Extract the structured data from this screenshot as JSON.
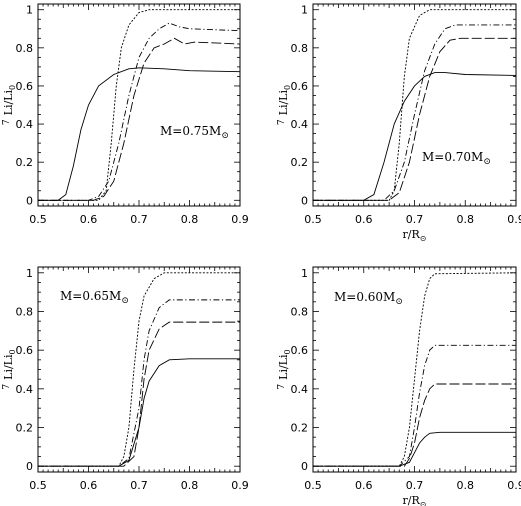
{
  "chart_data": [
    {
      "type": "line",
      "annotation": "M=0.75M",
      "annotation_sub": "⊙",
      "xlabel": "",
      "ylabel": "Li/Li",
      "ylabel_pre": "7",
      "ylabel_sub": "0",
      "xlim": [
        0.5,
        0.9
      ],
      "ylim": [
        -0.03,
        1.03
      ],
      "x_ticks": [
        "0.5",
        "0.6",
        "0.7",
        "0.8",
        "0.9"
      ],
      "y_ticks": [
        "0",
        "0.2",
        "0.4",
        "0.6",
        "0.8",
        "1"
      ],
      "series": [
        {
          "style": "solid",
          "points": [
            [
              0.5,
              0
            ],
            [
              0.54,
              0
            ],
            [
              0.555,
              0.03
            ],
            [
              0.57,
              0.18
            ],
            [
              0.585,
              0.37
            ],
            [
              0.6,
              0.5
            ],
            [
              0.62,
              0.6
            ],
            [
              0.65,
              0.66
            ],
            [
              0.68,
              0.69
            ],
            [
              0.7,
              0.695
            ],
            [
              0.75,
              0.69
            ],
            [
              0.8,
              0.68
            ],
            [
              0.9,
              0.675
            ]
          ]
        },
        {
          "style": "dotted",
          "points": [
            [
              0.5,
              0
            ],
            [
              0.62,
              0
            ],
            [
              0.635,
              0.05
            ],
            [
              0.645,
              0.3
            ],
            [
              0.655,
              0.6
            ],
            [
              0.665,
              0.8
            ],
            [
              0.68,
              0.92
            ],
            [
              0.7,
              0.985
            ],
            [
              0.72,
              1.0
            ],
            [
              0.9,
              1.0
            ]
          ]
        },
        {
          "style": "dashdot",
          "points": [
            [
              0.5,
              0
            ],
            [
              0.6,
              0
            ],
            [
              0.62,
              0.02
            ],
            [
              0.64,
              0.1
            ],
            [
              0.66,
              0.3
            ],
            [
              0.68,
              0.55
            ],
            [
              0.7,
              0.75
            ],
            [
              0.72,
              0.85
            ],
            [
              0.74,
              0.9
            ],
            [
              0.76,
              0.93
            ],
            [
              0.78,
              0.91
            ],
            [
              0.8,
              0.9
            ],
            [
              0.9,
              0.89
            ]
          ]
        },
        {
          "style": "dashlong",
          "points": [
            [
              0.5,
              0
            ],
            [
              0.61,
              0
            ],
            [
              0.63,
              0.02
            ],
            [
              0.65,
              0.1
            ],
            [
              0.67,
              0.3
            ],
            [
              0.69,
              0.55
            ],
            [
              0.71,
              0.72
            ],
            [
              0.73,
              0.8
            ],
            [
              0.75,
              0.82
            ],
            [
              0.77,
              0.85
            ],
            [
              0.79,
              0.82
            ],
            [
              0.81,
              0.83
            ],
            [
              0.9,
              0.82
            ]
          ]
        }
      ]
    },
    {
      "type": "line",
      "annotation": "M=0.70M",
      "annotation_sub": "⊙",
      "xlabel": "r/R",
      "xlabel_sub": "⊙",
      "ylabel": "Li/Li",
      "ylabel_pre": "7",
      "ylabel_sub": "0",
      "xlim": [
        0.5,
        0.9
      ],
      "ylim": [
        -0.03,
        1.03
      ],
      "x_ticks": [
        "0.5",
        "0.6",
        "0.7",
        "0.8",
        "0.9"
      ],
      "y_ticks": [
        "0",
        "0.2",
        "0.4",
        "0.6",
        "0.8",
        "1"
      ],
      "series": [
        {
          "style": "solid",
          "points": [
            [
              0.5,
              0
            ],
            [
              0.6,
              0
            ],
            [
              0.62,
              0.03
            ],
            [
              0.64,
              0.2
            ],
            [
              0.66,
              0.4
            ],
            [
              0.68,
              0.52
            ],
            [
              0.7,
              0.6
            ],
            [
              0.72,
              0.65
            ],
            [
              0.74,
              0.67
            ],
            [
              0.76,
              0.67
            ],
            [
              0.8,
              0.66
            ],
            [
              0.9,
              0.655
            ]
          ]
        },
        {
          "style": "dotted",
          "points": [
            [
              0.5,
              0
            ],
            [
              0.65,
              0
            ],
            [
              0.66,
              0.05
            ],
            [
              0.67,
              0.3
            ],
            [
              0.68,
              0.65
            ],
            [
              0.69,
              0.85
            ],
            [
              0.71,
              0.97
            ],
            [
              0.73,
              1.0
            ],
            [
              0.9,
              1.0
            ]
          ]
        },
        {
          "style": "dashdot",
          "points": [
            [
              0.5,
              0
            ],
            [
              0.64,
              0
            ],
            [
              0.66,
              0.05
            ],
            [
              0.68,
              0.2
            ],
            [
              0.7,
              0.45
            ],
            [
              0.72,
              0.68
            ],
            [
              0.74,
              0.82
            ],
            [
              0.76,
              0.9
            ],
            [
              0.78,
              0.92
            ],
            [
              0.9,
              0.92
            ]
          ]
        },
        {
          "style": "dashlong",
          "points": [
            [
              0.5,
              0
            ],
            [
              0.65,
              0
            ],
            [
              0.67,
              0.04
            ],
            [
              0.69,
              0.2
            ],
            [
              0.71,
              0.45
            ],
            [
              0.73,
              0.65
            ],
            [
              0.75,
              0.78
            ],
            [
              0.77,
              0.84
            ],
            [
              0.79,
              0.85
            ],
            [
              0.9,
              0.85
            ]
          ]
        }
      ]
    },
    {
      "type": "line",
      "annotation": "M=0.65M",
      "annotation_sub": "⊙",
      "xlabel": "",
      "ylabel": "Li/Li",
      "ylabel_pre": "7",
      "ylabel_sub": "0",
      "xlim": [
        0.5,
        0.9
      ],
      "ylim": [
        -0.03,
        1.03
      ],
      "x_ticks": [
        "0.5",
        "0.6",
        "0.7",
        "0.8",
        "0.9"
      ],
      "y_ticks": [
        "0",
        "0.2",
        "0.4",
        "0.6",
        "0.8",
        "1"
      ],
      "series": [
        {
          "style": "solid",
          "points": [
            [
              0.5,
              0
            ],
            [
              0.66,
              0
            ],
            [
              0.68,
              0.03
            ],
            [
              0.7,
              0.2
            ],
            [
              0.71,
              0.35
            ],
            [
              0.72,
              0.44
            ],
            [
              0.74,
              0.52
            ],
            [
              0.76,
              0.55
            ],
            [
              0.8,
              0.555
            ],
            [
              0.9,
              0.555
            ]
          ]
        },
        {
          "style": "dotted",
          "points": [
            [
              0.5,
              0
            ],
            [
              0.66,
              0
            ],
            [
              0.67,
              0.05
            ],
            [
              0.68,
              0.2
            ],
            [
              0.69,
              0.5
            ],
            [
              0.7,
              0.75
            ],
            [
              0.71,
              0.88
            ],
            [
              0.73,
              0.97
            ],
            [
              0.75,
              1.0
            ],
            [
              0.9,
              1.0
            ]
          ]
        },
        {
          "style": "dashdot",
          "points": [
            [
              0.5,
              0
            ],
            [
              0.66,
              0
            ],
            [
              0.68,
              0.04
            ],
            [
              0.7,
              0.3
            ],
            [
              0.71,
              0.55
            ],
            [
              0.72,
              0.7
            ],
            [
              0.74,
              0.82
            ],
            [
              0.76,
              0.86
            ],
            [
              0.9,
              0.86
            ]
          ]
        },
        {
          "style": "dashlong",
          "points": [
            [
              0.5,
              0
            ],
            [
              0.67,
              0
            ],
            [
              0.69,
              0.05
            ],
            [
              0.7,
              0.2
            ],
            [
              0.71,
              0.45
            ],
            [
              0.72,
              0.6
            ],
            [
              0.74,
              0.71
            ],
            [
              0.76,
              0.745
            ],
            [
              0.9,
              0.745
            ]
          ]
        }
      ]
    },
    {
      "type": "line",
      "annotation": "M=0.60M",
      "annotation_sub": "⊙",
      "xlabel": "r/R",
      "xlabel_sub": "⊙",
      "ylabel": "Li/Li",
      "ylabel_pre": "7",
      "ylabel_sub": "0",
      "xlim": [
        0.5,
        0.9
      ],
      "ylim": [
        -0.03,
        1.03
      ],
      "x_ticks": [
        "0.5",
        "0.6",
        "0.7",
        "0.8",
        "0.9"
      ],
      "y_ticks": [
        "0",
        "0.2",
        "0.4",
        "0.6",
        "0.8",
        "1"
      ],
      "series": [
        {
          "style": "solid",
          "points": [
            [
              0.5,
              0
            ],
            [
              0.67,
              0
            ],
            [
              0.69,
              0.02
            ],
            [
              0.7,
              0.07
            ],
            [
              0.71,
              0.12
            ],
            [
              0.72,
              0.15
            ],
            [
              0.73,
              0.17
            ],
            [
              0.75,
              0.175
            ],
            [
              0.9,
              0.175
            ]
          ]
        },
        {
          "style": "dotted",
          "points": [
            [
              0.5,
              0
            ],
            [
              0.67,
              0
            ],
            [
              0.68,
              0.05
            ],
            [
              0.69,
              0.2
            ],
            [
              0.7,
              0.45
            ],
            [
              0.71,
              0.7
            ],
            [
              0.72,
              0.88
            ],
            [
              0.73,
              0.97
            ],
            [
              0.74,
              0.995
            ],
            [
              0.9,
              1.0
            ]
          ]
        },
        {
          "style": "dashdot",
          "points": [
            [
              0.5,
              0
            ],
            [
              0.67,
              0
            ],
            [
              0.69,
              0.05
            ],
            [
              0.7,
              0.2
            ],
            [
              0.71,
              0.38
            ],
            [
              0.72,
              0.52
            ],
            [
              0.73,
              0.6
            ],
            [
              0.74,
              0.625
            ],
            [
              0.9,
              0.625
            ]
          ]
        },
        {
          "style": "dashlong",
          "points": [
            [
              0.5,
              0
            ],
            [
              0.68,
              0
            ],
            [
              0.69,
              0.04
            ],
            [
              0.7,
              0.12
            ],
            [
              0.71,
              0.25
            ],
            [
              0.72,
              0.34
            ],
            [
              0.73,
              0.4
            ],
            [
              0.74,
              0.425
            ],
            [
              0.9,
              0.425
            ]
          ]
        }
      ]
    }
  ]
}
